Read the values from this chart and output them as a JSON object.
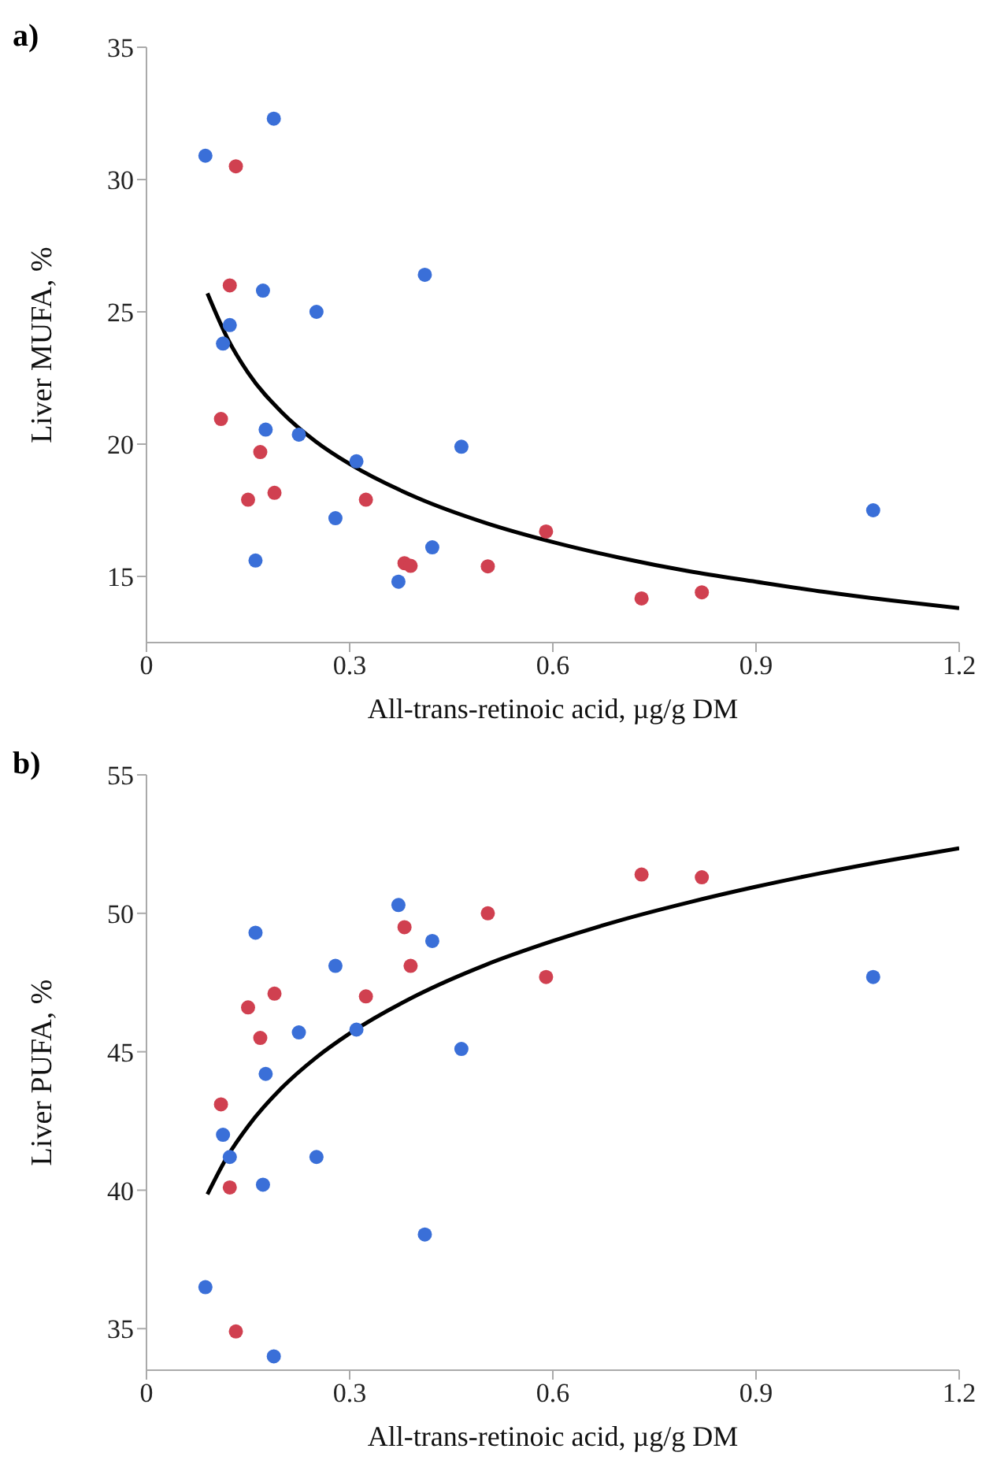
{
  "chart_data": [
    {
      "type": "scatter",
      "title": "a)",
      "xlabel": "All-trans-retinoic acid, µg/g DM",
      "ylabel": "Liver MUFA, %",
      "xlim": [
        0,
        1.2
      ],
      "xticks": [
        0,
        0.3,
        0.6,
        0.9,
        1.2
      ],
      "ylim": [
        12.5,
        35
      ],
      "yticks": [
        15,
        20,
        25,
        30,
        35
      ],
      "grid": false,
      "legend": false,
      "series": [
        {
          "marker": "circle",
          "color": "#3a6fd8",
          "x": [
            0.087,
            0.113,
            0.123,
            0.161,
            0.172,
            0.176,
            0.188,
            0.225,
            0.251,
            0.279,
            0.31,
            0.372,
            0.411,
            0.422,
            0.465,
            1.073
          ],
          "values": [
            30.9,
            23.8,
            24.5,
            15.6,
            25.8,
            20.55,
            32.3,
            20.36,
            25.0,
            17.2,
            19.35,
            14.8,
            26.4,
            16.1,
            19.9,
            17.5
          ]
        },
        {
          "marker": "circle",
          "color": "#d04050",
          "x": [
            0.11,
            0.123,
            0.132,
            0.15,
            0.168,
            0.189,
            0.324,
            0.381,
            0.39,
            0.504,
            0.59,
            0.731,
            0.82
          ],
          "values": [
            20.95,
            26.0,
            30.5,
            17.9,
            19.7,
            18.16,
            17.9,
            15.5,
            15.4,
            15.38,
            16.7,
            14.17,
            14.4
          ]
        },
        {
          "type": "line",
          "marker": "none",
          "color": "#000000",
          "x": [
            0.09,
            0.12,
            0.15,
            0.2,
            0.25,
            0.3,
            0.4,
            0.5,
            0.6,
            0.7,
            0.8,
            0.9,
            1.0,
            1.1,
            1.2
          ],
          "values": [
            25.7,
            23.98,
            22.7,
            21.2,
            20.1,
            19.25,
            17.97,
            17.03,
            16.3,
            15.7,
            15.2,
            14.8,
            14.42,
            14.09,
            13.8
          ]
        }
      ]
    },
    {
      "type": "scatter",
      "title": "b)",
      "xlabel": "All-trans-retinoic acid, µg/g DM",
      "ylabel": "Liver PUFA, %",
      "xlim": [
        0,
        1.2
      ],
      "xticks": [
        0,
        0.3,
        0.6,
        0.9,
        1.2
      ],
      "ylim": [
        33.5,
        55
      ],
      "yticks": [
        35,
        40,
        45,
        50,
        55
      ],
      "grid": false,
      "legend": false,
      "series": [
        {
          "marker": "circle",
          "color": "#3a6fd8",
          "x": [
            0.087,
            0.113,
            0.123,
            0.161,
            0.172,
            0.176,
            0.188,
            0.225,
            0.251,
            0.279,
            0.31,
            0.372,
            0.411,
            0.422,
            0.465,
            1.073
          ],
          "values": [
            36.5,
            42.0,
            41.2,
            49.3,
            40.2,
            44.2,
            34.0,
            45.7,
            41.2,
            48.1,
            45.8,
            50.3,
            38.4,
            49.0,
            45.1,
            47.7
          ]
        },
        {
          "marker": "circle",
          "color": "#d04050",
          "x": [
            0.11,
            0.123,
            0.132,
            0.15,
            0.168,
            0.189,
            0.324,
            0.381,
            0.39,
            0.504,
            0.59,
            0.731,
            0.82
          ],
          "values": [
            43.1,
            40.1,
            34.9,
            46.6,
            45.5,
            47.1,
            47.0,
            49.5,
            48.1,
            50.0,
            47.7,
            51.4,
            51.3
          ]
        },
        {
          "type": "line",
          "marker": "none",
          "color": "#000000",
          "x": [
            0.09,
            0.12,
            0.15,
            0.2,
            0.25,
            0.3,
            0.4,
            0.5,
            0.6,
            0.7,
            0.8,
            0.9,
            1.0,
            1.1,
            1.2
          ],
          "values": [
            39.85,
            41.24,
            42.31,
            43.7,
            44.78,
            45.66,
            47.05,
            48.13,
            49.0,
            49.75,
            50.39,
            50.96,
            51.47,
            51.93,
            52.35
          ]
        }
      ]
    }
  ]
}
